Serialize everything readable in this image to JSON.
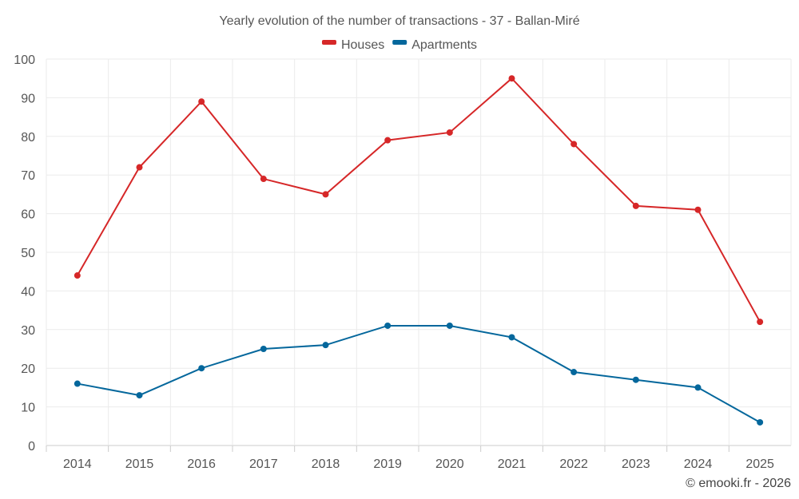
{
  "chart_data": {
    "type": "line",
    "title": "Yearly evolution of the number of transactions - 37 - Ballan-Miré",
    "xlabel": "",
    "ylabel": "",
    "categories": [
      "2014",
      "2015",
      "2016",
      "2017",
      "2018",
      "2019",
      "2020",
      "2021",
      "2022",
      "2023",
      "2024",
      "2025"
    ],
    "ylim": [
      0,
      100
    ],
    "yticks": [
      0,
      10,
      20,
      30,
      40,
      50,
      60,
      70,
      80,
      90,
      100
    ],
    "grid": true,
    "legend_position": "top-center",
    "series": [
      {
        "name": "Houses",
        "color": "#d62728",
        "values": [
          44,
          72,
          89,
          69,
          65,
          79,
          81,
          95,
          78,
          62,
          61,
          32
        ]
      },
      {
        "name": "Apartments",
        "color": "#04679c",
        "values": [
          16,
          13,
          20,
          25,
          26,
          31,
          31,
          28,
          19,
          17,
          15,
          6
        ]
      }
    ],
    "credit": "© emooki.fr - 2026"
  }
}
